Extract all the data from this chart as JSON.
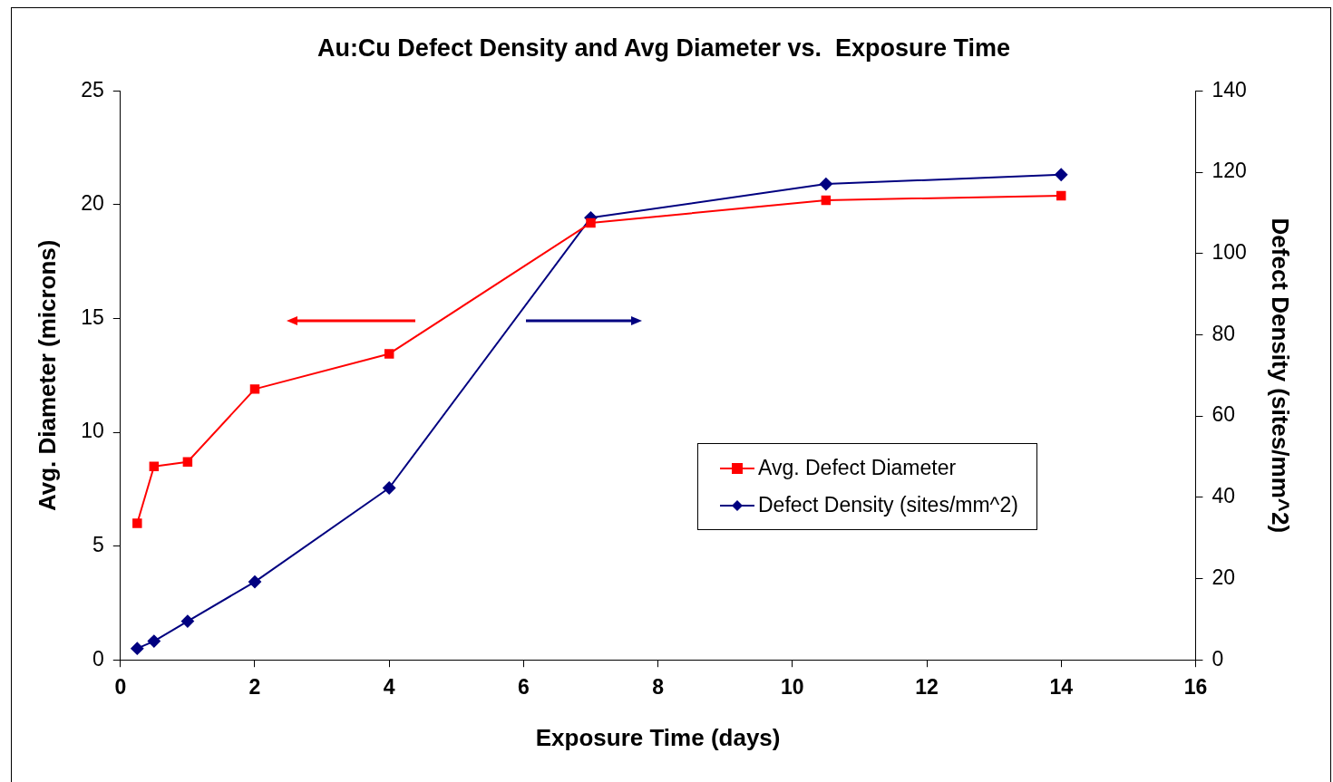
{
  "chart_data": {
    "type": "line",
    "title": "Au:Cu Defect Density and Avg Diameter vs.  Exposure Time",
    "xlabel": "Exposure Time (days)",
    "ylabel": "Avg. Diameter (microns)",
    "y2label": "Defect Density (sites/mm^2)",
    "x": [
      0.25,
      0.5,
      1,
      2,
      4,
      7,
      10.5,
      14
    ],
    "series": [
      {
        "name": "Avg. Defect Diameter",
        "color": "#ff0000",
        "marker": "square",
        "axis": "y",
        "values": [
          6.0,
          8.5,
          8.7,
          11.9,
          13.45,
          19.2,
          20.2,
          20.4
        ]
      },
      {
        "name": "Defect Density (sites/mm^2)",
        "color": "#000080",
        "marker": "diamond",
        "axis": "y2",
        "values": [
          2.8,
          4.6,
          9.5,
          19.2,
          42.3,
          108.8,
          117.1,
          119.4
        ]
      }
    ],
    "xlim": [
      0,
      16
    ],
    "xticks": [
      0,
      2,
      4,
      6,
      8,
      10,
      12,
      14,
      16
    ],
    "ylim": [
      0,
      25
    ],
    "yticks": [
      0,
      5,
      10,
      15,
      20,
      25
    ],
    "y2lim": [
      0,
      140
    ],
    "y2ticks": [
      0,
      20,
      40,
      60,
      80,
      100,
      120,
      140
    ],
    "grid": false,
    "legend": "right"
  }
}
